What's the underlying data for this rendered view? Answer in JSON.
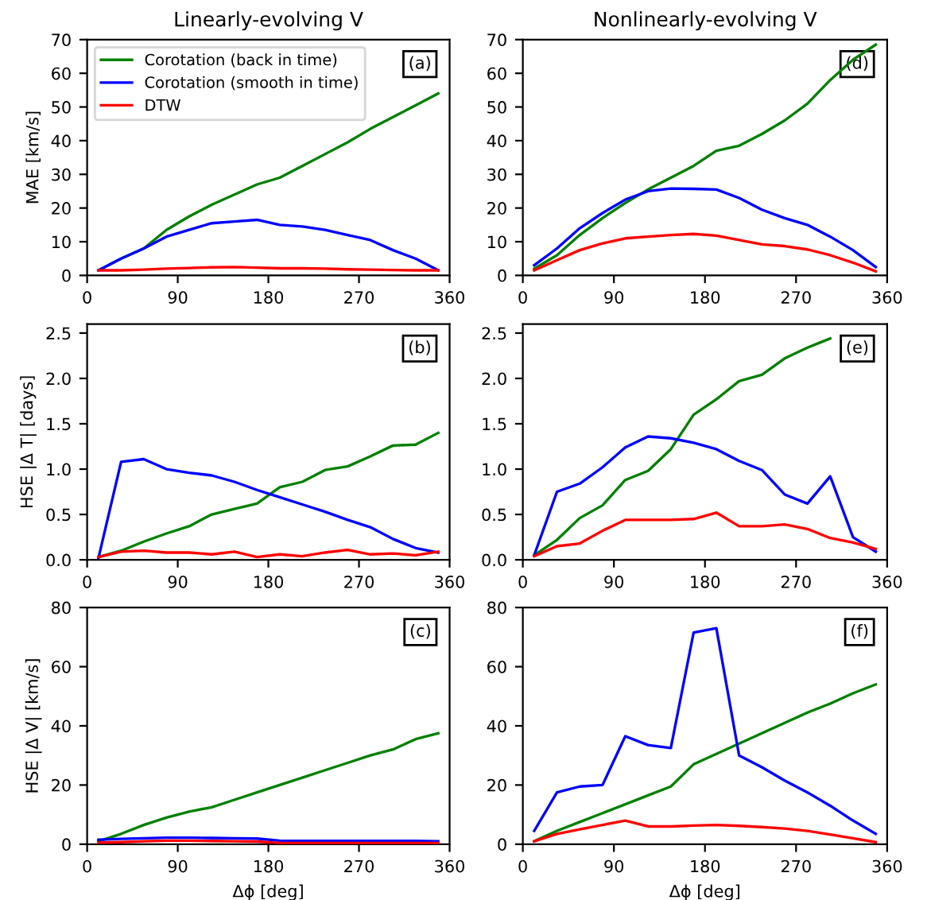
{
  "chart_data": [
    {
      "type": "line",
      "title": "Linearly-evolving V",
      "ylabel": "MAE [km/s]",
      "annotations": [
        "(a)"
      ],
      "legend": "top left",
      "x": [
        11.25,
        33.75,
        56.25,
        78.75,
        101.25,
        123.75,
        146.25,
        168.75,
        191.25,
        213.75,
        236.25,
        258.75,
        281.25,
        303.75,
        326.25,
        348.75
      ],
      "xlim": [
        0,
        360
      ],
      "xticks": [
        0,
        90,
        180,
        270,
        360
      ],
      "ylim": [
        0,
        70
      ],
      "yticks": [
        0,
        10,
        20,
        30,
        40,
        50,
        60,
        70
      ],
      "series": [
        {
          "name": "Corotation (back in time)",
          "color": "#008000",
          "values": [
            1.5,
            5,
            8,
            13.5,
            17.5,
            21,
            24,
            27,
            29,
            32.5,
            36,
            39.5,
            43.5,
            47,
            50.5,
            54
          ]
        },
        {
          "name": "Corotation (smooth in time)",
          "color": "#0000ff",
          "values": [
            1.5,
            5,
            8,
            11.5,
            13.5,
            15.5,
            16,
            16.5,
            15,
            14.5,
            13.5,
            12,
            10.5,
            7.5,
            5,
            1.5
          ]
        },
        {
          "name": "DTW",
          "color": "#ff0000",
          "values": [
            1.5,
            1.5,
            1.7,
            2,
            2.2,
            2.4,
            2.5,
            2.3,
            2.1,
            2.1,
            2,
            1.8,
            1.7,
            1.6,
            1.5,
            1.5
          ]
        }
      ]
    },
    {
      "type": "line",
      "title": "Nonlinearly-evolving V",
      "annotations": [
        "(d)"
      ],
      "x": [
        11.25,
        33.75,
        56.25,
        78.75,
        101.25,
        123.75,
        146.25,
        168.75,
        191.25,
        213.75,
        236.25,
        258.75,
        281.25,
        303.75,
        326.25,
        348.75
      ],
      "xlim": [
        0,
        360
      ],
      "xticks": [
        0,
        90,
        180,
        270,
        360
      ],
      "ylim": [
        0,
        70
      ],
      "yticks": [
        0,
        10,
        20,
        30,
        40,
        50,
        60,
        70
      ],
      "series": [
        {
          "color": "#008000",
          "values": [
            2,
            6,
            12,
            17,
            21.5,
            25.5,
            29,
            32.5,
            37,
            38.5,
            42,
            46,
            51,
            58,
            64,
            68.5
          ]
        },
        {
          "color": "#0000ff",
          "values": [
            3,
            8,
            14,
            18.5,
            22.5,
            25,
            25.8,
            25.7,
            25.5,
            23,
            19.5,
            17,
            15,
            11.5,
            7.5,
            2.5
          ]
        },
        {
          "color": "#ff0000",
          "values": [
            1.5,
            4.5,
            7.5,
            9.5,
            11,
            11.5,
            12,
            12.3,
            11.8,
            10.5,
            9.2,
            8.7,
            7.7,
            6,
            3.8,
            1.2
          ]
        }
      ]
    },
    {
      "type": "line",
      "ylabel": "HSE |Δ T| [days]",
      "annotations": [
        "(b)"
      ],
      "x": [
        11.25,
        33.75,
        56.25,
        78.75,
        101.25,
        123.75,
        146.25,
        168.75,
        191.25,
        213.75,
        236.25,
        258.75,
        281.25,
        303.75,
        326.25,
        348.75
      ],
      "xlim": [
        0,
        360
      ],
      "xticks": [
        0,
        90,
        180,
        270,
        360
      ],
      "ylim": [
        0,
        2.6
      ],
      "yticks": [
        {
          "value": 0,
          "label": "0.0"
        },
        0.5,
        {
          "value": 1,
          "label": "1.0"
        },
        1.5,
        {
          "value": 2,
          "label": "2.0"
        },
        2.5
      ],
      "series": [
        {
          "color": "#008000",
          "values": [
            0.03,
            0.1,
            0.2,
            0.29,
            0.37,
            0.5,
            0.56,
            0.62,
            0.8,
            0.86,
            0.99,
            1.03,
            1.14,
            1.26,
            1.27,
            1.4
          ]
        },
        {
          "color": "#0000ff",
          "values": [
            0.02,
            1.08,
            1.11,
            1.0,
            0.96,
            0.93,
            0.86,
            0.77,
            0.69,
            0.61,
            0.53,
            0.44,
            0.36,
            0.23,
            0.13,
            0.08
          ]
        },
        {
          "color": "#ff0000",
          "values": [
            0.03,
            0.09,
            0.1,
            0.08,
            0.08,
            0.06,
            0.09,
            0.03,
            0.06,
            0.04,
            0.08,
            0.11,
            0.06,
            0.07,
            0.05,
            0.09
          ]
        }
      ]
    },
    {
      "type": "line",
      "annotations": [
        "(e)"
      ],
      "x": [
        11.25,
        33.75,
        56.25,
        78.75,
        101.25,
        123.75,
        146.25,
        168.75,
        191.25,
        213.75,
        236.25,
        258.75,
        281.25,
        303.75,
        326.25,
        348.75
      ],
      "xlim": [
        0,
        360
      ],
      "xticks": [
        0,
        90,
        180,
        270,
        360
      ],
      "ylim": [
        0,
        2.6
      ],
      "yticks": [
        {
          "value": 0,
          "label": "0.0"
        },
        0.5,
        {
          "value": 1,
          "label": "1.0"
        },
        1.5,
        {
          "value": 2,
          "label": "2.0"
        },
        2.5
      ],
      "series": [
        {
          "color": "#008000",
          "values": [
            0.05,
            0.22,
            0.46,
            0.6,
            0.88,
            0.98,
            1.22,
            1.6,
            1.77,
            1.97,
            2.04,
            2.22,
            2.34,
            2.44,
            null,
            null
          ]
        },
        {
          "color": "#0000ff",
          "values": [
            0.05,
            0.75,
            0.84,
            1.02,
            1.24,
            1.36,
            1.34,
            1.29,
            1.22,
            1.09,
            0.99,
            0.72,
            0.62,
            0.92,
            0.25,
            0.09
          ]
        },
        {
          "color": "#ff0000",
          "values": [
            0.04,
            0.15,
            0.18,
            0.32,
            0.44,
            0.44,
            0.44,
            0.45,
            0.52,
            0.37,
            0.37,
            0.39,
            0.34,
            0.24,
            0.19,
            0.12
          ]
        }
      ]
    },
    {
      "type": "line",
      "xlabel": "Δϕ [deg]",
      "ylabel": "HSE |Δ V| [km/s]",
      "annotations": [
        "(c)"
      ],
      "x": [
        11.25,
        33.75,
        56.25,
        78.75,
        101.25,
        123.75,
        146.25,
        168.75,
        191.25,
        213.75,
        236.25,
        258.75,
        281.25,
        303.75,
        326.25,
        348.75
      ],
      "xlim": [
        0,
        360
      ],
      "xticks": [
        0,
        90,
        180,
        270,
        360
      ],
      "ylim": [
        0,
        80
      ],
      "yticks": [
        0,
        20,
        40,
        60,
        80
      ],
      "series": [
        {
          "color": "#008000",
          "values": [
            1,
            3.5,
            6.5,
            9,
            11,
            12.5,
            15,
            17.5,
            20,
            22.5,
            25,
            27.5,
            30,
            32,
            35.5,
            37.5
          ]
        },
        {
          "color": "#0000ff",
          "values": [
            1.5,
            1.8,
            2,
            2.2,
            2.2,
            2.1,
            2,
            1.9,
            1.2,
            1.1,
            1.1,
            1.1,
            1.1,
            1.1,
            1.1,
            1.0
          ]
        },
        {
          "color": "#ff0000",
          "values": [
            0.5,
            0.7,
            1.0,
            1.2,
            1.2,
            1.1,
            1.0,
            0.9,
            0.4,
            0.4,
            0.4,
            0.4,
            0.4,
            0.4,
            0.4,
            0.4
          ]
        }
      ]
    },
    {
      "type": "line",
      "xlabel": "Δϕ [deg]",
      "annotations": [
        "(f)"
      ],
      "x": [
        11.25,
        33.75,
        56.25,
        78.75,
        101.25,
        123.75,
        146.25,
        168.75,
        191.25,
        213.75,
        236.25,
        258.75,
        281.25,
        303.75,
        326.25,
        348.75
      ],
      "xlim": [
        0,
        360
      ],
      "xticks": [
        0,
        90,
        180,
        270,
        360
      ],
      "ylim": [
        0,
        80
      ],
      "yticks": [
        0,
        20,
        40,
        60,
        80
      ],
      "series": [
        {
          "color": "#008000",
          "values": [
            1,
            4.5,
            7.5,
            10.5,
            13.5,
            16.5,
            19.5,
            27,
            30.5,
            34,
            37.5,
            41,
            44.5,
            47.5,
            51,
            54
          ]
        },
        {
          "color": "#0000ff",
          "values": [
            4.5,
            17.5,
            19.5,
            20,
            36.5,
            33.5,
            32.5,
            71.5,
            73,
            30,
            26,
            21.5,
            17.5,
            13,
            8,
            3.5
          ]
        },
        {
          "color": "#ff0000",
          "values": [
            1,
            3.5,
            5,
            6.5,
            8,
            6,
            6,
            6.3,
            6.5,
            6.2,
            5.8,
            5.3,
            4.5,
            3.3,
            2,
            0.7
          ]
        }
      ]
    }
  ]
}
